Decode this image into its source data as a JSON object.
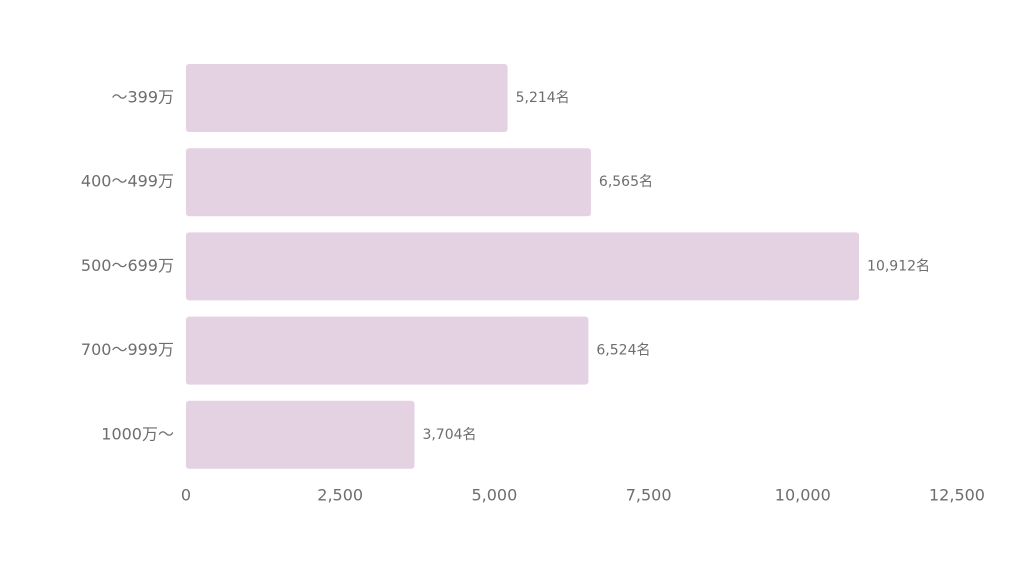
{
  "chart_data": {
    "type": "bar",
    "orientation": "horizontal",
    "categories": [
      "～399万",
      "400～499万",
      "500～699万",
      "700～999万",
      "1000万～"
    ],
    "values": [
      5214,
      6565,
      10912,
      6524,
      3704
    ],
    "data_labels": [
      "5,214名",
      "6,565名",
      "10,912名",
      "6,524名",
      "3,704名"
    ],
    "xlim": [
      0,
      12500
    ],
    "xticks": [
      0,
      2500,
      5000,
      7500,
      10000,
      12500
    ],
    "xtick_labels": [
      "0",
      "2,500",
      "5,000",
      "7,500",
      "10,000",
      "12,500"
    ],
    "title": "",
    "xlabel": "",
    "ylabel": "",
    "grid": false,
    "legend": "none"
  },
  "colors": {
    "bar": "#e4d2e3",
    "text": "#6e6e6e",
    "background": "#ffffff"
  }
}
